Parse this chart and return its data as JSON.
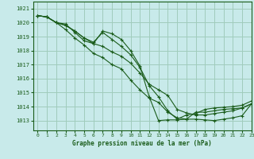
{
  "title": "Graphe pression niveau de la mer (hPa)",
  "bg_color": "#c8eaea",
  "grid_color": "#a0ccbc",
  "line_color": "#1a5c1a",
  "marker_color": "#1a5c1a",
  "xlim": [
    -0.5,
    23
  ],
  "ylim": [
    1012.3,
    1021.5
  ],
  "yticks": [
    1013,
    1014,
    1015,
    1016,
    1017,
    1018,
    1019,
    1020,
    1021
  ],
  "xticks": [
    0,
    1,
    2,
    3,
    4,
    5,
    6,
    7,
    8,
    9,
    10,
    11,
    12,
    13,
    14,
    15,
    16,
    17,
    18,
    19,
    20,
    21,
    22,
    23
  ],
  "series": [
    [
      1020.5,
      1020.4,
      1020.0,
      1019.9,
      1019.3,
      1018.7,
      1018.5,
      1019.4,
      1019.2,
      1018.8,
      1018.0,
      1016.9,
      1014.7,
      1013.0,
      1013.05,
      1013.05,
      1013.1,
      1013.6,
      1013.6,
      1013.7,
      1013.8,
      1013.85,
      1013.9,
      1014.2
    ],
    [
      1020.5,
      1020.4,
      1020.0,
      1019.8,
      1019.4,
      1018.9,
      1018.6,
      1019.3,
      1018.8,
      1018.3,
      1017.7,
      1016.8,
      1015.5,
      1014.7,
      1013.7,
      1013.1,
      1013.4,
      1013.5,
      1013.8,
      1013.9,
      1013.95,
      1014.0,
      1014.1,
      1014.4
    ],
    [
      1020.5,
      1020.4,
      1020.0,
      1019.8,
      1019.4,
      1018.9,
      1018.5,
      1018.3,
      1017.9,
      1017.6,
      1017.1,
      1016.4,
      1015.6,
      1015.2,
      1014.8,
      1013.8,
      1013.55,
      1013.4,
      1013.4,
      1013.5,
      1013.6,
      1013.7,
      1013.9,
      1014.2
    ],
    [
      1020.5,
      1020.4,
      1020.0,
      1019.5,
      1018.9,
      1018.4,
      1017.8,
      1017.5,
      1017.0,
      1016.7,
      1015.9,
      1015.2,
      1014.6,
      1014.3,
      1013.6,
      1013.2,
      1013.1,
      1013.1,
      1013.05,
      1013.0,
      1013.1,
      1013.2,
      1013.35,
      1014.2
    ]
  ]
}
